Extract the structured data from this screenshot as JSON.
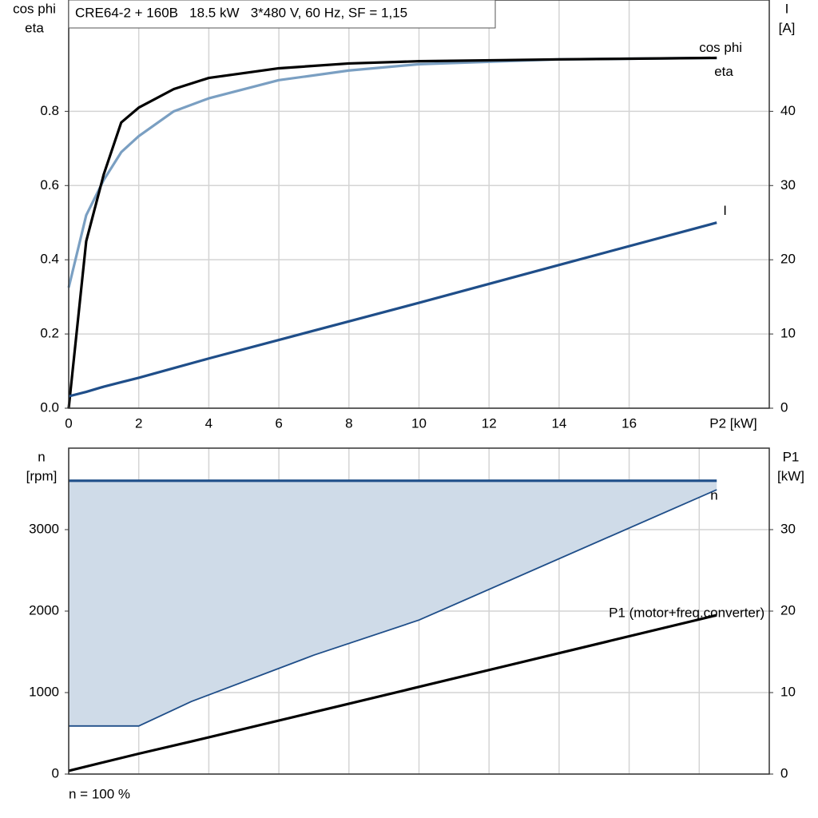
{
  "chart_data": [
    {
      "type": "line",
      "title": "CRE64-2 + 160B   18.5 kW   3*480 V, 60 Hz, SF = 1,15",
      "y_label_lines": [
        "cos phi",
        "eta"
      ],
      "y2_label_lines": [
        "I",
        "[A]"
      ],
      "x_label": "P2 [kW]",
      "xlim": [
        0,
        20
      ],
      "xticks": [
        0,
        2,
        4,
        6,
        8,
        10,
        12,
        14,
        16
      ],
      "show_x_tick_labels": true,
      "ylim": [
        0,
        1.1
      ],
      "yticks": [
        {
          "value": 0,
          "label": "0.0"
        },
        0.2,
        0.4,
        0.6,
        0.8
      ],
      "y2lim": [
        0,
        55
      ],
      "y2ticks": [
        0,
        10,
        20,
        30,
        40
      ],
      "grid": true,
      "x": [
        0,
        0.5,
        1,
        1.5,
        2,
        3,
        4,
        6,
        8,
        10,
        14,
        18.5
      ],
      "series": [
        {
          "name": "cos phi",
          "color": "#7a9fc2",
          "values": [
            0.325,
            0.52,
            0.615,
            0.69,
            0.733,
            0.8,
            0.835,
            0.884,
            0.91,
            0.927,
            0.94,
            0.944
          ]
        },
        {
          "name": "eta",
          "color": "#000000",
          "values": [
            0,
            0.45,
            0.63,
            0.77,
            0.81,
            0.86,
            0.89,
            0.916,
            0.929,
            0.935,
            0.94,
            0.944
          ]
        },
        {
          "name": "I",
          "color": "#1f4e89",
          "axis": "y2",
          "values": [
            1.6,
            2.2,
            2.9,
            3.5,
            4.1,
            5.4,
            6.7,
            9.2,
            11.7,
            14.2,
            19.3,
            25.0
          ]
        }
      ]
    },
    {
      "type": "line",
      "y_label_lines": [
        "n",
        "[rpm]"
      ],
      "y2_label_lines": [
        "P1",
        "[kW]"
      ],
      "footnote": "n = 100 %",
      "xlim": [
        0,
        20
      ],
      "xticks": [
        0,
        2,
        4,
        6,
        8,
        10,
        12,
        14,
        16,
        18
      ],
      "show_x_tick_labels": false,
      "ylim": [
        0,
        4000
      ],
      "yticks": [
        0,
        1000,
        2000,
        3000
      ],
      "y2lim": [
        0,
        40
      ],
      "y2ticks": [
        0,
        10,
        20,
        30
      ],
      "grid": true,
      "x": [
        0,
        2,
        3.5,
        7,
        10,
        18.5
      ],
      "series": [
        {
          "name": "n",
          "color": "#1f4e89",
          "band_color": "#cfdbe8",
          "values": [
            3600,
            3600,
            3600,
            3600,
            3600,
            3600
          ],
          "band_low": [
            590,
            590,
            890,
            1460,
            1890,
            3490
          ]
        },
        {
          "name": "P1 (motor+freq.converter)",
          "color": "#000000",
          "axis": "y2",
          "values": [
            0.4,
            2.5,
            4.0,
            7.6,
            10.7,
            19.5
          ]
        }
      ]
    }
  ]
}
